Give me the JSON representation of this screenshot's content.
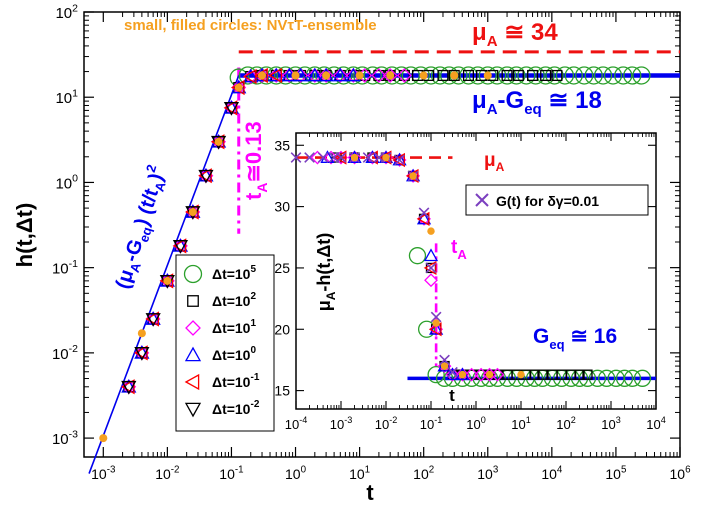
{
  "chart_data": [
    {
      "type": "scatter",
      "id": "main",
      "xlabel": "t",
      "ylabel": "h(t,Δt)",
      "xscale": "log",
      "yscale": "log",
      "xlim": [
        0.0005,
        1000000
      ],
      "ylim": [
        0.0006,
        100
      ],
      "x_ticks": [
        {
          "value": 0.001,
          "label": "10",
          "exp": "-3"
        },
        {
          "value": 0.01,
          "label": "10",
          "exp": "-2"
        },
        {
          "value": 0.1,
          "label": "10",
          "exp": "-1"
        },
        {
          "value": 1,
          "label": "10",
          "exp": "0"
        },
        {
          "value": 10,
          "label": "10",
          "exp": "1"
        },
        {
          "value": 100,
          "label": "10",
          "exp": "2"
        },
        {
          "value": 1000,
          "label": "10",
          "exp": "3"
        },
        {
          "value": 10000,
          "label": "10",
          "exp": "4"
        },
        {
          "value": 100000,
          "label": "10",
          "exp": "5"
        },
        {
          "value": 1000000,
          "label": "10",
          "exp": "6"
        }
      ],
      "y_ticks": [
        {
          "value": 0.001,
          "label": "10",
          "exp": "-3"
        },
        {
          "value": 0.01,
          "label": "10",
          "exp": "-2"
        },
        {
          "value": 0.1,
          "label": "10",
          "exp": "-1"
        },
        {
          "value": 1,
          "label": "10",
          "exp": "0"
        },
        {
          "value": 10,
          "label": "10",
          "exp": "1"
        },
        {
          "value": 100,
          "label": "10",
          "exp": "2"
        }
      ],
      "annotations": {
        "ensemble_note": "small, filled circles: NVτT-ensemble",
        "muA_base": "μ",
        "muA_sub": "A",
        "muA_value": " ≅ 34",
        "muA_Geq_base": "μ",
        "muA_Geq_sub": "A",
        "muA_Geq_mid": "-G",
        "muA_Geq_sub2": "eq",
        "muA_Geq_value": " ≅ 18",
        "tA_base": "t",
        "tA_sub": "A",
        "tA_value": "≅0.13",
        "slope_label_1": "(μ",
        "slope_label_sub1": "A",
        "slope_label_2": "-G",
        "slope_label_sub2": "eq",
        "slope_label_3": ") (t/t",
        "slope_label_sub3": "A",
        "slope_label_4": ")",
        "slope_label_exp": "2"
      },
      "reference_lines": {
        "muA": 34,
        "plateau": 18,
        "tA": 0.13
      },
      "legend_placement": "lower-center",
      "series": [
        {
          "name": "Δt=10",
          "exp": "5",
          "marker": "circle",
          "color": "#2ca02c",
          "x": [
            0.13,
            0.18,
            0.25,
            0.35,
            0.5,
            0.7,
            1,
            1.4,
            2,
            2.8,
            4,
            5.6,
            8,
            11,
            16,
            22,
            32,
            45,
            63,
            90,
            130,
            180,
            250,
            350,
            500,
            700,
            1000,
            1400,
            2000,
            2800,
            4000,
            5600,
            8000,
            11000,
            16000,
            22000,
            32000,
            45000,
            63000,
            90000,
            130000,
            180000,
            250000
          ],
          "y": [
            17,
            18,
            18,
            18,
            18,
            18,
            18,
            18,
            18,
            18,
            18,
            18,
            18,
            18,
            18,
            18,
            18,
            18,
            18,
            18,
            18,
            18,
            18,
            18,
            18,
            18,
            18,
            18,
            18,
            18,
            18,
            18,
            18,
            18,
            18,
            18,
            18,
            18,
            18,
            18,
            18,
            18,
            18
          ]
        },
        {
          "name": "Δt=10",
          "exp": "2",
          "marker": "square",
          "color": "#000000",
          "x": [
            0.0025,
            0.004,
            0.006,
            0.01,
            0.016,
            0.025,
            0.04,
            0.063,
            0.1,
            0.13,
            0.2,
            0.3,
            0.5,
            0.8,
            1.2,
            2,
            3,
            5,
            8,
            12,
            20,
            30,
            50,
            80,
            120,
            200,
            300,
            500,
            800,
            1200,
            2000,
            3000,
            5000,
            8000,
            12000
          ],
          "y": [
            0.004,
            0.01,
            0.025,
            0.07,
            0.18,
            0.45,
            1.2,
            3,
            7.5,
            13,
            17.5,
            18,
            18,
            18,
            18,
            18,
            18,
            18,
            18,
            18,
            18,
            18,
            18,
            18,
            18,
            18,
            18,
            18,
            18,
            18,
            18,
            18,
            18,
            18,
            18
          ]
        },
        {
          "name": "Δt=10",
          "exp": "1",
          "marker": "diamond",
          "color": "#ff00ff",
          "x": [
            0.0025,
            0.004,
            0.006,
            0.01,
            0.016,
            0.025,
            0.04,
            0.063,
            0.1,
            0.13,
            0.2,
            0.3,
            0.5,
            0.8,
            1.2,
            2,
            3,
            5,
            8,
            12,
            20,
            30,
            50
          ],
          "y": [
            0.004,
            0.01,
            0.025,
            0.07,
            0.18,
            0.45,
            1.2,
            3,
            7.5,
            13,
            17.5,
            18,
            18,
            18,
            18,
            18,
            18,
            18,
            18,
            18,
            18,
            18,
            18
          ]
        },
        {
          "name": "Δt=10",
          "exp": "0",
          "marker": "triangle-up",
          "color": "#0000ff",
          "x": [
            0.0025,
            0.004,
            0.006,
            0.01,
            0.016,
            0.025,
            0.04,
            0.063,
            0.1,
            0.13,
            0.2,
            0.3,
            0.5,
            0.8,
            1.2,
            2,
            3,
            5,
            8
          ],
          "y": [
            0.004,
            0.01,
            0.025,
            0.07,
            0.18,
            0.45,
            1.2,
            3,
            7.5,
            13,
            17.5,
            18,
            18,
            18,
            18,
            18,
            18,
            18,
            18
          ]
        },
        {
          "name": "Δt=10",
          "exp": "-1",
          "marker": "triangle-left",
          "color": "#ff0000",
          "x": [
            0.0025,
            0.004,
            0.006,
            0.01,
            0.016,
            0.025,
            0.04,
            0.063,
            0.1,
            0.13,
            0.2,
            0.3,
            0.5
          ],
          "y": [
            0.004,
            0.01,
            0.025,
            0.07,
            0.18,
            0.45,
            1.2,
            3,
            7.5,
            13,
            17.5,
            18,
            18
          ]
        },
        {
          "name": "Δt=10",
          "exp": "-2",
          "marker": "triangle-down",
          "color": "#000000",
          "x": [
            0.0025,
            0.004,
            0.006,
            0.01,
            0.016,
            0.025,
            0.04,
            0.063,
            0.1
          ],
          "y": [
            0.004,
            0.01,
            0.025,
            0.07,
            0.18,
            0.45,
            1.2,
            3,
            7.5
          ]
        },
        {
          "name": "NVτT",
          "marker": "filled-circle",
          "color": "#f5a020",
          "x": [
            0.001,
            0.004,
            0.01,
            0.025,
            0.063,
            0.13,
            0.3,
            1,
            3,
            10,
            30,
            100,
            300,
            1000
          ],
          "y": [
            0.001,
            0.017,
            0.07,
            0.45,
            3,
            13,
            18,
            18,
            18,
            18,
            18,
            18,
            18,
            18
          ]
        }
      ]
    },
    {
      "type": "scatter",
      "id": "inset",
      "xlabel": "t",
      "ylabel_base": "μ",
      "ylabel_sub": "A",
      "ylabel_rest": "-h(t,Δt)",
      "xscale": "log",
      "xlim": [
        0.0001,
        10000
      ],
      "ylim": [
        13.5,
        36
      ],
      "x_ticks": [
        {
          "value": 0.0001,
          "label": "10",
          "exp": "-4"
        },
        {
          "value": 0.001,
          "label": "10",
          "exp": "-3"
        },
        {
          "value": 0.01,
          "label": "10",
          "exp": "-2"
        },
        {
          "value": 0.1,
          "label": "10",
          "exp": "-1"
        },
        {
          "value": 1,
          "label": "10",
          "exp": "0"
        },
        {
          "value": 10,
          "label": "10",
          "exp": "1"
        },
        {
          "value": 100,
          "label": "10",
          "exp": "2"
        },
        {
          "value": 1000,
          "label": "10",
          "exp": "3"
        },
        {
          "value": 10000,
          "label": "10",
          "exp": "4"
        }
      ],
      "y_ticks": [
        15,
        20,
        25,
        30,
        35
      ],
      "annotations": {
        "muA_base": "μ",
        "muA_sub": "A",
        "tA_base": "t",
        "tA_sub": "A",
        "Geq_base": "G",
        "Geq_sub": "eq",
        "Geq_value": " ≅ 16",
        "gt_legend": "G(t) for δγ=0.01"
      },
      "reference_lines": {
        "muA": 34,
        "Geq": 16,
        "tA": 0.13
      },
      "series": [
        {
          "name": "Δt=10^5",
          "marker": "circle",
          "color": "#2ca02c",
          "x": [
            0.05,
            0.08,
            0.13,
            0.2,
            0.3,
            0.5,
            0.8,
            1.3,
            2,
            3,
            5,
            8,
            13,
            20,
            30,
            50,
            80,
            130,
            200,
            300,
            500,
            800,
            1300,
            2000,
            3000,
            5000
          ],
          "y": [
            26,
            20,
            16.3,
            16,
            16,
            16,
            16,
            16,
            16,
            16,
            16,
            16,
            16,
            16,
            16,
            16,
            16,
            16,
            16,
            16,
            16,
            16,
            16,
            16,
            16,
            16
          ]
        },
        {
          "name": "Δt=10^2",
          "marker": "square",
          "color": "#000000",
          "x": [
            0.0008,
            0.002,
            0.005,
            0.01,
            0.02,
            0.04,
            0.07,
            0.1,
            0.13,
            0.2,
            0.3,
            0.5,
            0.8,
            1.3,
            2,
            3,
            5,
            8,
            13,
            20,
            30,
            50,
            80,
            130,
            200,
            300
          ],
          "y": [
            34,
            34,
            34,
            34,
            33.8,
            32.5,
            29,
            25,
            20,
            17,
            16.3,
            16.3,
            16.3,
            16.3,
            16.3,
            16.3,
            16.3,
            16.3,
            16.3,
            16.3,
            16.3,
            16.3,
            16.3,
            16.3,
            16.3,
            16.3
          ]
        },
        {
          "name": "Δt=10^1",
          "marker": "diamond",
          "color": "#ff00ff",
          "x": [
            0.0003,
            0.0006,
            0.001,
            0.002,
            0.005,
            0.01,
            0.02,
            0.04,
            0.07,
            0.1,
            0.13,
            0.2,
            0.3,
            0.5,
            0.8,
            1.3,
            2,
            3
          ],
          "y": [
            34,
            34,
            34,
            34,
            34,
            34,
            33.8,
            32.5,
            29,
            24,
            20,
            17,
            16.3,
            16.3,
            16.3,
            16.3,
            16.3,
            16.3
          ]
        },
        {
          "name": "Δt=10^0",
          "marker": "triangle-up",
          "color": "#0000ff",
          "x": [
            0.0005,
            0.002,
            0.005,
            0.01,
            0.02,
            0.04,
            0.07,
            0.1,
            0.13,
            0.2,
            0.3,
            0.5
          ],
          "y": [
            34,
            34,
            34,
            34,
            33.8,
            32.5,
            29,
            26,
            20,
            17,
            16.3,
            16.3
          ]
        },
        {
          "name": "Δt=10^-1",
          "marker": "triangle-left",
          "color": "#ff0000",
          "x": [
            0.001,
            0.005,
            0.01,
            0.02,
            0.04,
            0.07,
            0.1,
            0.13
          ],
          "y": [
            34,
            34,
            34,
            33.8,
            32.5,
            29,
            25,
            20
          ]
        },
        {
          "name": "G(t)",
          "marker": "x",
          "color": "#7b3fbf",
          "x": [
            0.0001,
            0.0002,
            0.0004,
            0.0007,
            0.001,
            0.002,
            0.004,
            0.007,
            0.01,
            0.02,
            0.04,
            0.07,
            0.1,
            0.13,
            0.2,
            0.3
          ],
          "y": [
            34,
            34,
            34,
            34,
            34,
            34,
            34,
            34,
            34,
            33.8,
            32.5,
            29.5,
            25,
            21,
            17.5,
            16.5
          ]
        },
        {
          "name": "NVτT",
          "marker": "filled-circle",
          "color": "#f5a020",
          "x": [
            0.002,
            0.01,
            0.04,
            0.1,
            0.13,
            0.2,
            0.5,
            2,
            10
          ],
          "y": [
            34,
            34,
            32.5,
            28,
            20.5,
            17,
            16.3,
            16.3,
            16.3
          ]
        }
      ]
    }
  ]
}
